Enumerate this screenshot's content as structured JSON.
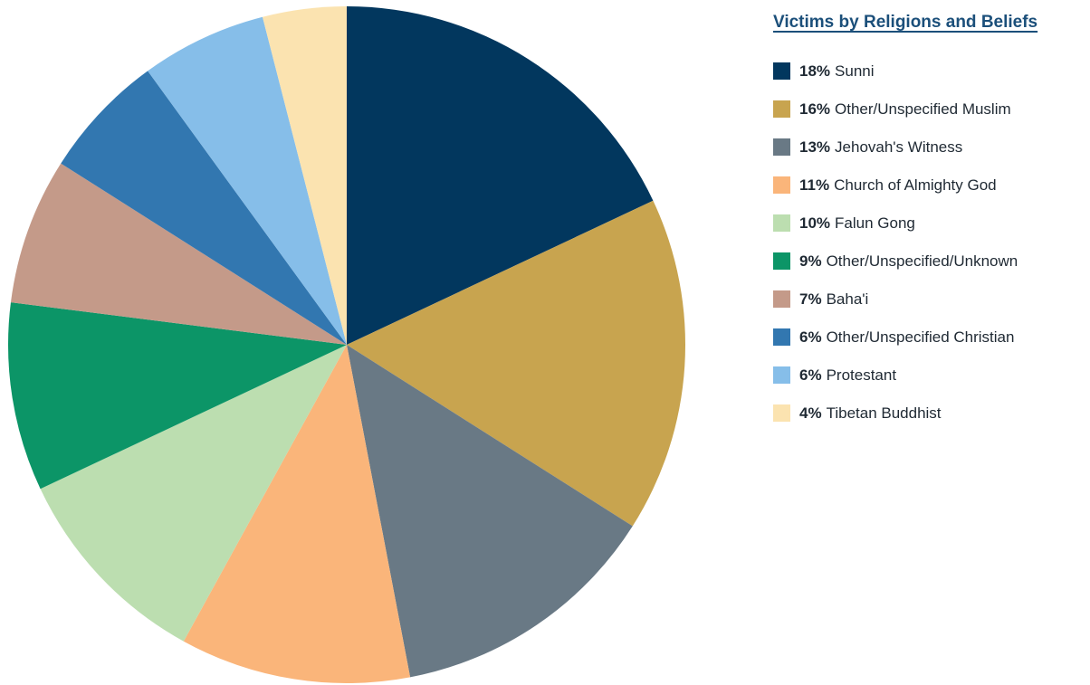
{
  "chart_data": {
    "type": "pie",
    "title": "Victims by Religions and Beliefs",
    "slices": [
      {
        "label": "Sunni",
        "value": 18,
        "display": "18%",
        "color": "#02375e"
      },
      {
        "label": "Other/Unspecified Muslim",
        "value": 16,
        "display": "16%",
        "color": "#c8a44f"
      },
      {
        "label": "Jehovah's Witness",
        "value": 13,
        "display": "13%",
        "color": "#697985"
      },
      {
        "label": "Church of Almighty God",
        "value": 11,
        "display": "11%",
        "color": "#fab57a"
      },
      {
        "label": "Falun Gong",
        "value": 10,
        "display": "10%",
        "color": "#bcdeb0"
      },
      {
        "label": "Other/Unspecified/Unknown",
        "value": 9,
        "display": "9%",
        "color": "#0c9567"
      },
      {
        "label": "Baha'i",
        "value": 7,
        "display": "7%",
        "color": "#c49a89"
      },
      {
        "label": "Other/Unspecified Christian",
        "value": 6,
        "display": "6%",
        "color": "#3277b0"
      },
      {
        "label": "Protestant",
        "value": 6,
        "display": "6%",
        "color": "#86bee9"
      },
      {
        "label": "Tibetan Buddhist",
        "value": 4,
        "display": "4%",
        "color": "#fbe3b0"
      }
    ],
    "legend_placement": "right"
  }
}
